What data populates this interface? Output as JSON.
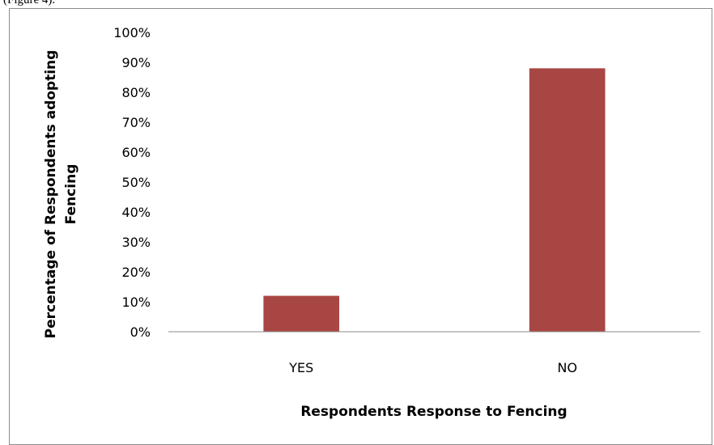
{
  "fragment_text": "(Figure 4).",
  "chart_data": {
    "type": "bar",
    "categories": [
      "YES",
      "NO"
    ],
    "values": [
      12,
      88
    ],
    "ylim": [
      0,
      100
    ],
    "y_ticks": [
      0,
      10,
      20,
      30,
      40,
      50,
      60,
      70,
      80,
      90,
      100
    ],
    "y_tick_suffix": "%",
    "xlabel": "Respondents Response to Fencing",
    "ylabel_lines": [
      "Percentage of Respondents adopting",
      "Fencing"
    ],
    "grid": false,
    "legend": "none",
    "bar_color": "#a84644",
    "axis_color": "#8c8c8c"
  }
}
